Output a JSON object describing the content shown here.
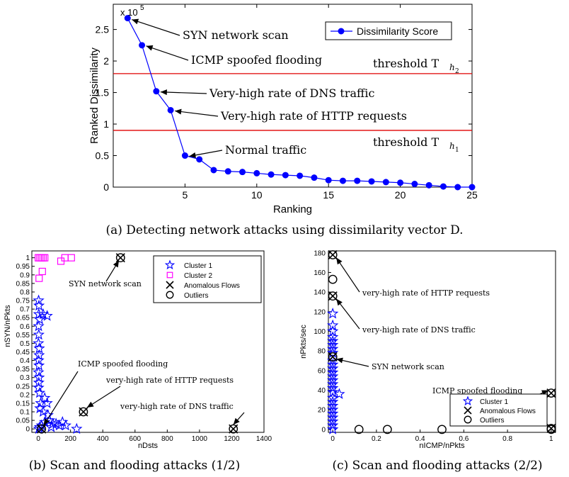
{
  "chart_data": [
    {
      "id": "a",
      "type": "line",
      "caption": "(a) Detecting network attacks using dissimilarity vector D.",
      "xlabel": "Ranking",
      "ylabel": "Ranked Dissimilarity",
      "y_multiplier": "x 10",
      "y_multiplier_exp": "5",
      "xlim": [
        0,
        25
      ],
      "ylim": [
        0,
        2.9
      ],
      "xticks": [
        5,
        10,
        15,
        20,
        25
      ],
      "yticks": [
        0,
        0.5,
        1,
        1.5,
        2,
        2.5
      ],
      "legend": {
        "position": "top-right",
        "entries": [
          "Dissimilarity Score"
        ]
      },
      "series": [
        {
          "name": "Dissimilarity Score",
          "color": "#0000ff",
          "x": [
            1,
            2,
            3,
            4,
            5,
            6,
            7,
            8,
            9,
            10,
            11,
            12,
            13,
            14,
            15,
            16,
            17,
            18,
            19,
            20,
            21,
            22,
            23,
            24,
            25
          ],
          "y": [
            2.68,
            2.25,
            1.52,
            1.22,
            0.5,
            0.44,
            0.27,
            0.25,
            0.24,
            0.22,
            0.2,
            0.19,
            0.18,
            0.15,
            0.11,
            0.1,
            0.1,
            0.09,
            0.08,
            0.07,
            0.05,
            0.03,
            0.01,
            0.0,
            0.0
          ]
        }
      ],
      "thresholds": [
        {
          "y": 1.8,
          "color": "#e00000",
          "label": "threshold T",
          "sub": "h",
          "subsub": "2"
        },
        {
          "y": 0.9,
          "color": "#e00000",
          "label": "threshold T",
          "sub": "h",
          "subsub": "1"
        }
      ],
      "annotations": [
        {
          "text": "SYN network scan",
          "x": 1,
          "y": 2.68
        },
        {
          "text": "ICMP spoofed flooding",
          "x": 2,
          "y": 2.25
        },
        {
          "text": "Very-high rate of DNS traffic",
          "x": 3,
          "y": 1.52
        },
        {
          "text": "Very-high rate of HTTP requests",
          "x": 4,
          "y": 1.22
        },
        {
          "text": "Normal traffic",
          "x": 5,
          "y": 0.5
        }
      ]
    },
    {
      "id": "b",
      "type": "scatter",
      "caption": "(b) Scan and flooding attacks (1/2)",
      "xlabel": "nDsts",
      "ylabel": "nSYN/nPkts",
      "xlim": [
        -40,
        1400
      ],
      "ylim": [
        -0.02,
        1.04
      ],
      "xticks": [
        0,
        200,
        400,
        600,
        800,
        1000,
        1200,
        1400
      ],
      "yticks": [
        0,
        0.05,
        0.1,
        0.15,
        0.2,
        0.25,
        0.3,
        0.35,
        0.4,
        0.45,
        0.5,
        0.55,
        0.6,
        0.65,
        0.7,
        0.75,
        0.8,
        0.85,
        0.9,
        0.95,
        1
      ],
      "ytick_labels": [
        "0",
        "0.05",
        "0.1",
        "0.15",
        "0.2",
        "0.25",
        "0.3",
        "0.35",
        "0.4",
        "0.45",
        "0.5",
        "0.55",
        "0.6",
        "0.65",
        "0.7",
        "0.75",
        "0.8",
        "0.85",
        "0.9",
        "0.95",
        "1"
      ],
      "legend": {
        "position": "top-right",
        "entries": [
          "Cluster 1",
          "Cluster 2",
          "Anomalous Flows",
          "Outliers"
        ]
      },
      "series": [
        {
          "name": "Cluster 1",
          "color": "#0000ff",
          "marker": "star",
          "points": [
            [
              2,
              0.75
            ],
            [
              4,
              0.72
            ],
            [
              3,
              0.67
            ],
            [
              8,
              0.64
            ],
            [
              30,
              0.67
            ],
            [
              55,
              0.66
            ],
            [
              2,
              0.6
            ],
            [
              3,
              0.55
            ],
            [
              1,
              0.5
            ],
            [
              6,
              0.47
            ],
            [
              5,
              0.43
            ],
            [
              2,
              0.4
            ],
            [
              4,
              0.37
            ],
            [
              1,
              0.33
            ],
            [
              5,
              0.3
            ],
            [
              3,
              0.27
            ],
            [
              2,
              0.24
            ],
            [
              8,
              0.21
            ],
            [
              40,
              0.18
            ],
            [
              55,
              0.15
            ],
            [
              15,
              0.15
            ],
            [
              10,
              0.12
            ],
            [
              30,
              0.1
            ],
            [
              60,
              0.08
            ],
            [
              70,
              0.05
            ],
            [
              90,
              0.03
            ],
            [
              110,
              0.03
            ],
            [
              130,
              0.02
            ],
            [
              150,
              0.04
            ],
            [
              170,
              0.02
            ],
            [
              80,
              0.01
            ],
            [
              40,
              0.04
            ],
            [
              20,
              0.02
            ],
            [
              3,
              0.0
            ],
            [
              8,
              0.01
            ],
            [
              238,
              0.0
            ]
          ]
        },
        {
          "name": "Cluster 2",
          "color": "#ff00ff",
          "marker": "square",
          "points": [
            [
              5,
              0.88
            ],
            [
              25,
              0.92
            ],
            [
              0,
              1.0
            ],
            [
              10,
              1.0
            ],
            [
              20,
              1.0
            ],
            [
              30,
              1.0
            ],
            [
              40,
              1.0
            ],
            [
              140,
              0.98
            ],
            [
              165,
              1.0
            ],
            [
              205,
              1.0
            ]
          ]
        },
        {
          "name": "Anomalous Flows",
          "color": "#000000",
          "marker": "x",
          "points": [
            [
              510,
              1.0
            ],
            [
              280,
              0.1
            ],
            [
              1210,
              0.0
            ],
            [
              20,
              0.0
            ]
          ]
        },
        {
          "name": "Outliers",
          "color": "#000000",
          "marker": "circle",
          "points": [
            [
              510,
              1.0
            ],
            [
              280,
              0.1
            ],
            [
              1210,
              0.0
            ],
            [
              20,
              0.0
            ]
          ]
        }
      ],
      "annotations": [
        {
          "text": "SYN network scan"
        },
        {
          "text": "ICMP spoofed flooding"
        },
        {
          "text": "very-high rate of HTTP requests"
        },
        {
          "text": "very-high rate of DNS traffic"
        }
      ]
    },
    {
      "id": "c",
      "type": "scatter",
      "caption": "(c) Scan and flooding attacks (2/2)",
      "xlabel": "nICMP/nPkts",
      "ylabel": "nPkts/sec",
      "xlim": [
        -0.02,
        1.02
      ],
      "ylim": [
        -3,
        182
      ],
      "xticks": [
        0,
        0.2,
        0.4,
        0.6,
        0.8,
        1
      ],
      "yticks": [
        0,
        20,
        40,
        60,
        80,
        100,
        120,
        140,
        160,
        180
      ],
      "legend": {
        "position": "bottom-right",
        "entries": [
          "Cluster 1",
          "Anomalous Flows",
          "Outliers"
        ]
      },
      "series": [
        {
          "name": "Cluster 1",
          "color": "#0000ff",
          "marker": "star",
          "points": [
            [
              0.0,
              118
            ],
            [
              0.0,
              106
            ],
            [
              0.0,
              100
            ],
            [
              0.0,
              94
            ],
            [
              0.0,
              90
            ],
            [
              0.0,
              86
            ],
            [
              0.0,
              82
            ],
            [
              0.0,
              78
            ],
            [
              0.0,
              70
            ],
            [
              0.0,
              66
            ],
            [
              0.0,
              62
            ],
            [
              0.0,
              58
            ],
            [
              0.0,
              54
            ],
            [
              0.0,
              50
            ],
            [
              0.0,
              46
            ],
            [
              0.0,
              42
            ],
            [
              0.0,
              38
            ],
            [
              0.03,
              36
            ],
            [
              0.0,
              32
            ],
            [
              0.0,
              28
            ],
            [
              0.0,
              24
            ],
            [
              0.0,
              20
            ],
            [
              0.0,
              16
            ],
            [
              0.0,
              12
            ],
            [
              0.0,
              8
            ],
            [
              0.0,
              4
            ],
            [
              0.0,
              0
            ]
          ]
        },
        {
          "name": "Anomalous Flows",
          "color": "#000000",
          "marker": "x",
          "points": [
            [
              0.0,
              178
            ],
            [
              0.0,
              136
            ],
            [
              0.0,
              74
            ],
            [
              1.0,
              37
            ],
            [
              1.0,
              1
            ]
          ]
        },
        {
          "name": "Outliers",
          "color": "#000000",
          "marker": "circle",
          "points": [
            [
              0.0,
              178
            ],
            [
              0.0,
              153
            ],
            [
              0.0,
              136
            ],
            [
              0.0,
              74
            ],
            [
              1.0,
              37
            ],
            [
              0.12,
              0
            ],
            [
              0.25,
              0
            ],
            [
              0.5,
              0
            ],
            [
              1.0,
              0
            ],
            [
              1.0,
              1
            ]
          ]
        }
      ],
      "annotations": [
        {
          "text": "very-high rate of HTTP requests"
        },
        {
          "text": "very-high rate of DNS traffic"
        },
        {
          "text": "SYN network scan"
        },
        {
          "text": "ICMP spoofed flooding"
        }
      ]
    }
  ]
}
